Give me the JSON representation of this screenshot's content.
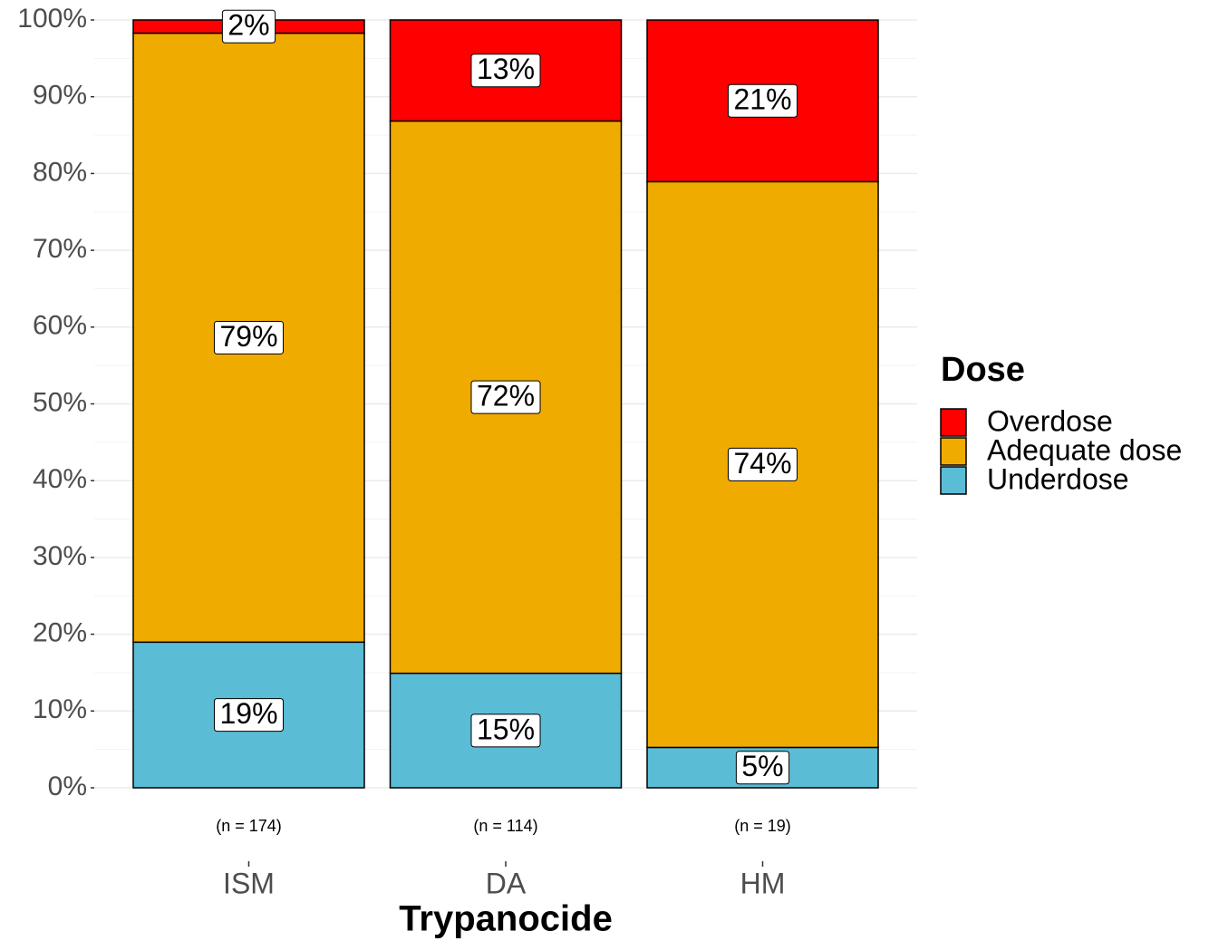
{
  "chart_data": {
    "type": "stacked_bar",
    "x_label": "Trypanocide",
    "categories": [
      "ISM",
      "DA",
      "HM"
    ],
    "sublabels": [
      "(n = 174)",
      "(n = 114)",
      "(n = 19)"
    ],
    "legend_title": "Dose",
    "legend": "right",
    "series": [
      {
        "name": "Overdose",
        "color": "#ff0000",
        "values": [
          1.72,
          13.16,
          21.05
        ],
        "value_labels": [
          "2%",
          "13%",
          "21%"
        ]
      },
      {
        "name": "Adequate dose",
        "color": "#f0ab00",
        "values": [
          79.31,
          71.93,
          73.68
        ],
        "value_labels": [
          "79%",
          "72%",
          "74%"
        ]
      },
      {
        "name": "Underdose",
        "color": "#5bbcd6",
        "values": [
          18.97,
          14.91,
          5.26
        ],
        "value_labels": [
          "19%",
          "15%",
          "5%"
        ]
      }
    ],
    "ylim": [
      0,
      100
    ],
    "yticks": [
      {
        "value": 0,
        "label": "0%"
      },
      {
        "value": 10,
        "label": "10%"
      },
      {
        "value": 20,
        "label": "20%"
      },
      {
        "value": 30,
        "label": "30%"
      },
      {
        "value": 40,
        "label": "40%"
      },
      {
        "value": 50,
        "label": "50%"
      },
      {
        "value": 60,
        "label": "60%"
      },
      {
        "value": 70,
        "label": "70%"
      },
      {
        "value": 80,
        "label": "80%"
      },
      {
        "value": 90,
        "label": "90%"
      },
      {
        "value": 100,
        "label": "100%"
      }
    ],
    "yticks_minor": [
      5,
      15,
      25,
      35,
      45,
      55,
      65,
      75,
      85,
      95
    ],
    "grid": true
  }
}
